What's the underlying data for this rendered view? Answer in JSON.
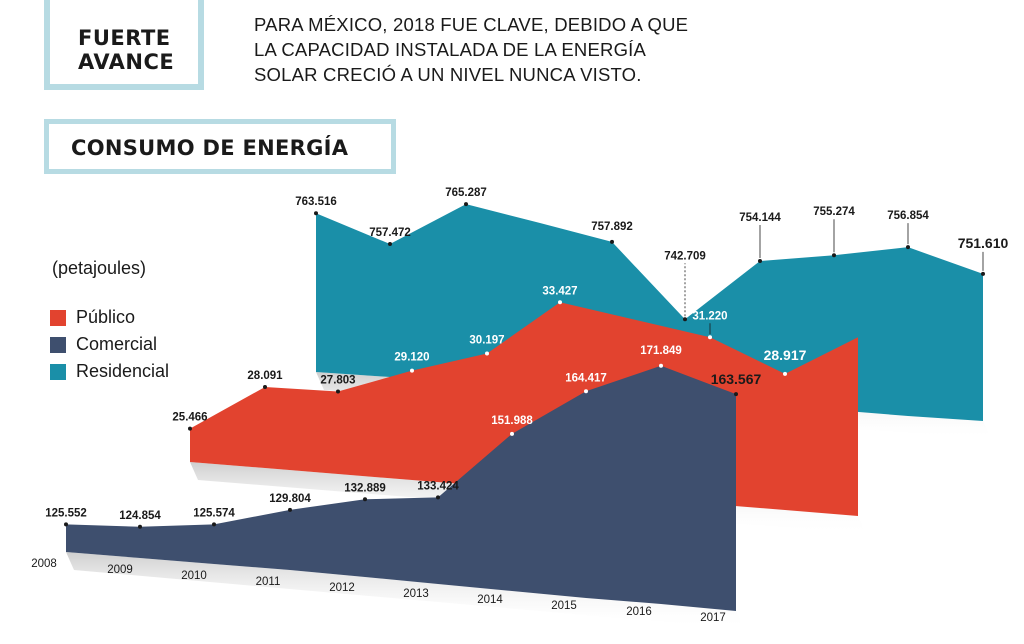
{
  "tag": {
    "line1": "FUERTE",
    "line2": "AVANCE"
  },
  "lead": {
    "line1": "PARA MÉXICO, 2018 FUE CLAVE, DEBIDO A QUE",
    "line2": "LA CAPACIDAD INSTALADA DE LA ENERGÍA",
    "line3": "SOLAR CRECIÓ A UN NIVEL NUNCA VISTO."
  },
  "colors": {
    "publico": "#e2432f",
    "comercial": "#3e4f6e",
    "residencial": "#1a8fa8",
    "frame": "#b7dbe3"
  },
  "chart_data": {
    "type": "area",
    "title": "CONSUMO DE ENERGÍA",
    "ylabel": "(petajoules)",
    "legend_placement": "left",
    "x": [
      "2008",
      "2009",
      "2010",
      "2011",
      "2012",
      "2013",
      "2014",
      "2015",
      "2016",
      "2017"
    ],
    "series": [
      {
        "name": "Público",
        "color": "#e2432f",
        "values": [
          25.466,
          28.091,
          27.803,
          29.12,
          30.197,
          33.427,
          null,
          31.22,
          28.917,
          null
        ],
        "labels": [
          "25.466",
          "28.091",
          "27.803",
          "29.120",
          "30.197",
          "33.427",
          "",
          "31.220",
          "28.917",
          ""
        ]
      },
      {
        "name": "Comercial",
        "color": "#3e4f6e",
        "values": [
          125.552,
          124.854,
          125.574,
          129.804,
          132.889,
          133.424,
          151.988,
          164.417,
          171.849,
          163.567
        ],
        "labels": [
          "125.552",
          "124.854",
          "125.574",
          "129.804",
          "132.889",
          "133.424",
          "151.988",
          "164.417",
          "171.849",
          "163.567"
        ]
      },
      {
        "name": "Residencial",
        "color": "#1a8fa8",
        "values": [
          763.516,
          757.472,
          765.287,
          null,
          757.892,
          742.709,
          754.144,
          755.274,
          756.854,
          751.61
        ],
        "labels": [
          "763.516",
          "757.472",
          "765.287",
          "",
          "757.892",
          "742.709",
          "754.144",
          "755.274",
          "756.854",
          "751.610"
        ]
      }
    ]
  }
}
